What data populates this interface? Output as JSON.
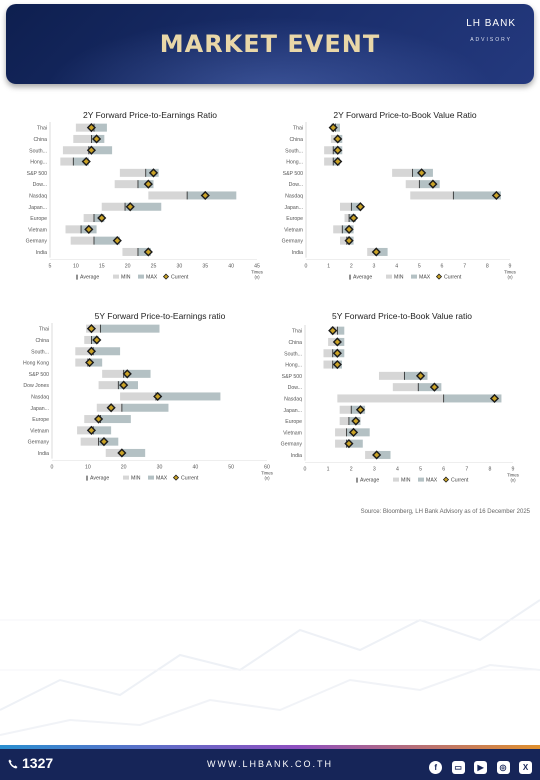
{
  "header": {
    "title": "MARKET EVENT",
    "logo_main": "LH BANK",
    "logo_sub": "ADVISORY"
  },
  "colors": {
    "min_bar": "#d6d6d6",
    "max_bar": "#b4c1c4",
    "marker": "#1b1b1b",
    "marker_fill": "#c9a227",
    "avg_line": "#222222"
  },
  "legend": {
    "average": "Average",
    "min": "MIN",
    "max": "MAX",
    "current": "Current"
  },
  "source": "Source: Bloomberg, LH Bank Advisory as of 16 December 2025",
  "footer": {
    "phone": "1327",
    "website": "WWW.LHBANK.CO.TH",
    "socials": [
      "facebook-icon",
      "line-icon",
      "youtube-icon",
      "instagram-icon",
      "x-icon"
    ]
  },
  "chart_data": [
    {
      "type": "bar",
      "title": "2Y Forward Price-to-Earnings Ratio",
      "unit": "Times (x)",
      "xlim": [
        5,
        45
      ],
      "ticks": [
        5,
        10,
        15,
        20,
        25,
        30,
        35,
        40,
        45
      ],
      "categories": [
        "Thai",
        "China",
        "South...",
        "Hong...",
        "S&P 500",
        "Dow...",
        "Nasdaq",
        "Japan...",
        "Europe",
        "Vietnam",
        "Germany",
        "India"
      ],
      "min": [
        10.0,
        9.5,
        7.5,
        7.0,
        18.5,
        17.5,
        24.0,
        15.0,
        11.5,
        8.0,
        9.0,
        19.0
      ],
      "max": [
        16.0,
        15.5,
        17.0,
        12.5,
        26.0,
        25.0,
        41.0,
        26.5,
        15.5,
        14.0,
        18.5,
        24.5
      ],
      "average": [
        13.5,
        13.0,
        12.5,
        9.5,
        23.5,
        22.0,
        31.5,
        19.5,
        13.5,
        11.0,
        13.5,
        22.0
      ],
      "current": [
        13.0,
        14.0,
        13.0,
        12.0,
        25.0,
        24.0,
        35.0,
        20.5,
        15.0,
        12.5,
        18.0,
        24.0
      ]
    },
    {
      "type": "bar",
      "title": "2Y Forward Price-to-Book Value Ratio",
      "unit": "Times (x)",
      "xlim": [
        0,
        9
      ],
      "ticks": [
        0,
        1,
        2,
        3,
        4,
        5,
        6,
        7,
        8,
        9
      ],
      "categories": [
        "Thai",
        "China",
        "South...",
        "Hong...",
        "S&P 500",
        "Dow...",
        "Nasdaq",
        "Japan...",
        "Europe",
        "Vietnam",
        "Germany",
        "India"
      ],
      "min": [
        1.1,
        1.1,
        0.8,
        0.8,
        3.8,
        4.4,
        4.6,
        1.5,
        1.7,
        1.2,
        1.5,
        2.7
      ],
      "max": [
        1.5,
        1.6,
        1.6,
        1.5,
        5.6,
        5.9,
        8.6,
        2.4,
        2.2,
        2.1,
        2.1,
        3.6
      ],
      "average": [
        1.3,
        1.4,
        1.2,
        1.2,
        4.7,
        5.0,
        6.5,
        2.0,
        1.9,
        1.6,
        1.8,
        3.1
      ],
      "current": [
        1.2,
        1.4,
        1.4,
        1.4,
        5.1,
        5.6,
        8.4,
        2.4,
        2.1,
        1.9,
        1.9,
        3.1
      ]
    },
    {
      "type": "bar",
      "title": "5Y Forward Price-to-Earnings ratio",
      "unit": "Times (x)",
      "xlim": [
        0,
        60
      ],
      "ticks": [
        0,
        10,
        20,
        30,
        40,
        50,
        60
      ],
      "categories": [
        "Thai",
        "China",
        "South...",
        "Hong Kong",
        "S&P 500",
        "Dow Jones",
        "Nasdaq",
        "Japan...",
        "Europe",
        "Vietnam",
        "Germany",
        "India"
      ],
      "min": [
        9.5,
        9.0,
        6.5,
        6.5,
        14.0,
        13.0,
        19.0,
        12.5,
        9.0,
        7.0,
        8.0,
        15.0
      ],
      "max": [
        30.0,
        13.0,
        19.0,
        14.0,
        27.5,
        24.0,
        47.0,
        32.5,
        22.0,
        16.5,
        18.5,
        26.0
      ],
      "average": [
        13.5,
        11.0,
        11.5,
        10.0,
        20.0,
        18.5,
        29.0,
        19.5,
        13.5,
        11.5,
        13.0,
        19.5
      ],
      "current": [
        11.0,
        12.5,
        11.0,
        10.5,
        21.0,
        20.0,
        29.5,
        16.5,
        13.0,
        11.0,
        14.5,
        19.5
      ]
    },
    {
      "type": "bar",
      "title": "5Y Forward Price-to-Book Value ratio",
      "unit": "Times (x)",
      "xlim": [
        0,
        9
      ],
      "ticks": [
        0,
        1,
        2,
        3,
        4,
        5,
        6,
        7,
        8,
        9
      ],
      "categories": [
        "Thai",
        "China",
        "South...",
        "Hong...",
        "S&P 500",
        "Dow...",
        "Nasdaq",
        "Japan...",
        "Europe",
        "Vietnam",
        "Germany",
        "India"
      ],
      "min": [
        1.1,
        1.0,
        0.8,
        0.8,
        3.2,
        3.8,
        1.4,
        1.5,
        1.5,
        1.3,
        1.3,
        2.6
      ],
      "max": [
        1.7,
        1.7,
        1.7,
        1.6,
        5.3,
        5.9,
        8.5,
        2.6,
        2.4,
        2.8,
        2.5,
        3.7
      ],
      "average": [
        1.4,
        1.4,
        1.2,
        1.2,
        4.3,
        4.9,
        6.0,
        2.0,
        1.9,
        1.8,
        1.8,
        3.1
      ],
      "current": [
        1.2,
        1.4,
        1.4,
        1.4,
        5.0,
        5.6,
        8.2,
        2.4,
        2.2,
        2.1,
        1.9,
        3.1
      ]
    }
  ]
}
